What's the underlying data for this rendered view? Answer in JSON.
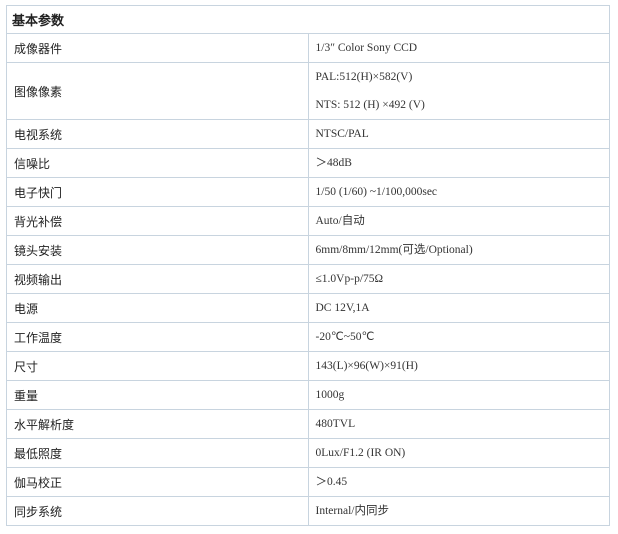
{
  "table": {
    "title": "基本参数",
    "rows": [
      [
        "成像器件",
        "1/3″ Color Sony CCD"
      ],
      [
        "图像像素",
        "PAL:512(H)×582(V)",
        "NTS: 512 (H) ×492 (V)"
      ],
      [
        "电视系统",
        "NTSC/PAL"
      ],
      [
        "信噪比",
        "＞48dB"
      ],
      [
        "电子快门",
        "1/50 (1/60) ~1/100,000sec"
      ],
      [
        "背光补偿",
        "Auto/自动"
      ],
      [
        "镜头安装",
        "6mm/8mm/12mm(可选/Optional)"
      ],
      [
        "视频输出",
        "≤1.0Vp-p/75Ω"
      ],
      [
        "电源",
        "DC 12V,1A"
      ],
      [
        "工作温度",
        "-20℃~50℃"
      ],
      [
        "尺寸",
        "143(L)×96(W)×91(H)"
      ],
      [
        "重量",
        "1000g"
      ],
      [
        "水平解析度",
        "480TVL"
      ],
      [
        "最低照度",
        "0Lux/F1.2 (IR ON)"
      ],
      [
        "伽马校正",
        "＞0.45"
      ],
      [
        "同步系统",
        "Internal/内同步"
      ]
    ]
  }
}
